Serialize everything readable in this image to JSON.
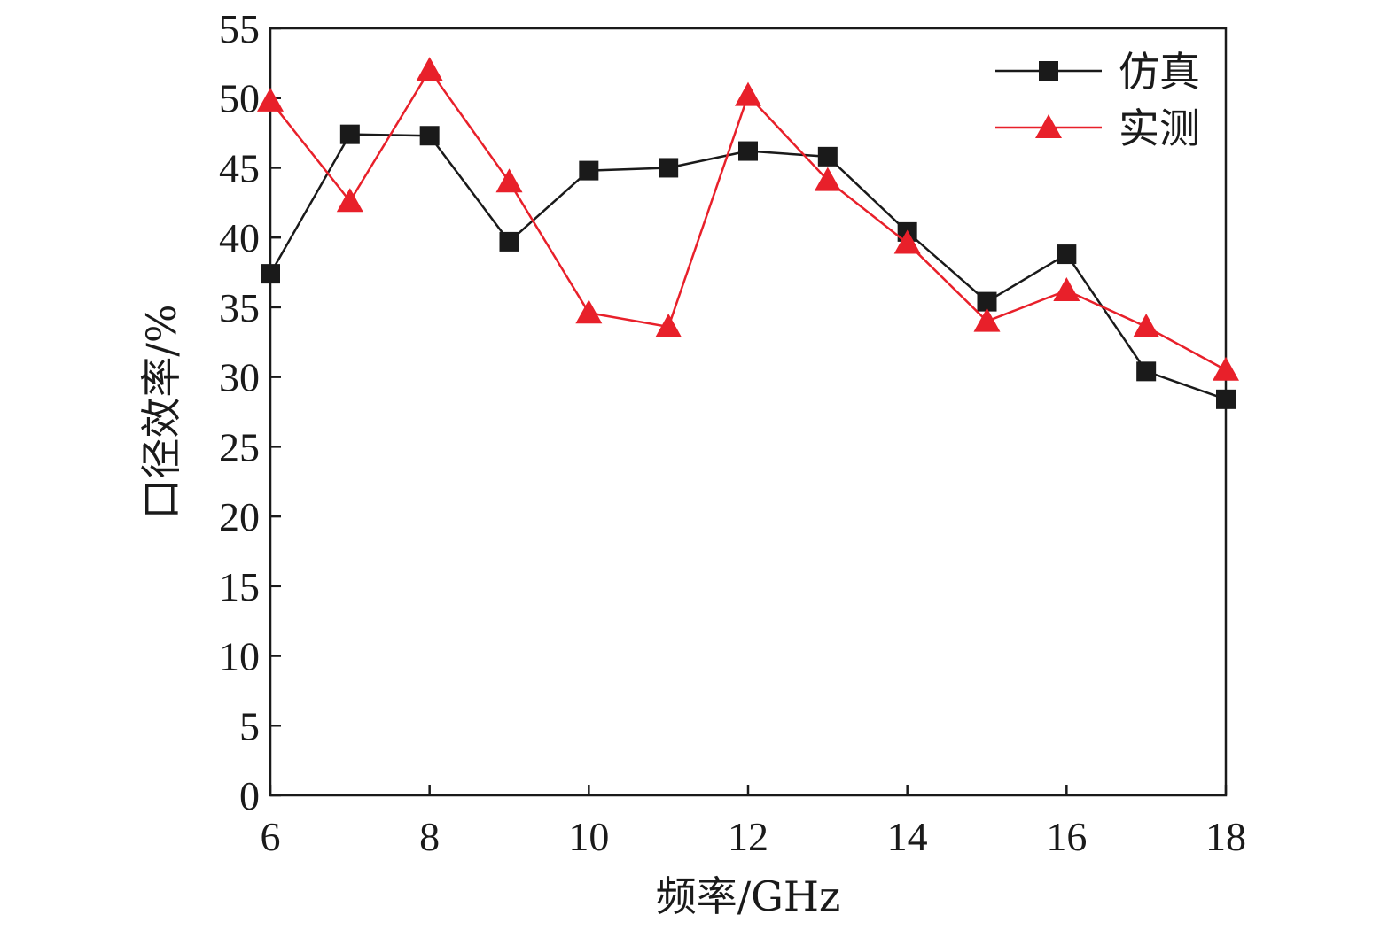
{
  "chart_data": {
    "type": "line",
    "xlabel": "频率/GHz",
    "ylabel": "口径效率/%",
    "xlim": [
      6,
      18
    ],
    "ylim": [
      0,
      55
    ],
    "xticks": [
      6,
      8,
      10,
      12,
      14,
      16,
      18
    ],
    "yticks": [
      0,
      5,
      10,
      15,
      20,
      25,
      30,
      35,
      40,
      45,
      50,
      55
    ],
    "grid": false,
    "legend_position": "top-right",
    "series": [
      {
        "name": "仿真",
        "color": "#1a1a1a",
        "marker": "square",
        "x": [
          6,
          7,
          8,
          9,
          10,
          11,
          12,
          13,
          14,
          15,
          16,
          17,
          18
        ],
        "y": [
          37.4,
          47.4,
          47.3,
          39.7,
          44.8,
          45.0,
          46.2,
          45.8,
          40.4,
          35.4,
          38.8,
          30.4,
          28.4
        ]
      },
      {
        "name": "实测",
        "color": "#e8202a",
        "marker": "triangle",
        "x": [
          6,
          7,
          8,
          9,
          10,
          11,
          12,
          13,
          14,
          15,
          16,
          17,
          18
        ],
        "y": [
          49.8,
          42.6,
          52.0,
          44.0,
          34.6,
          33.6,
          50.2,
          44.1,
          39.6,
          34.0,
          36.2,
          33.6,
          30.5
        ]
      }
    ]
  }
}
